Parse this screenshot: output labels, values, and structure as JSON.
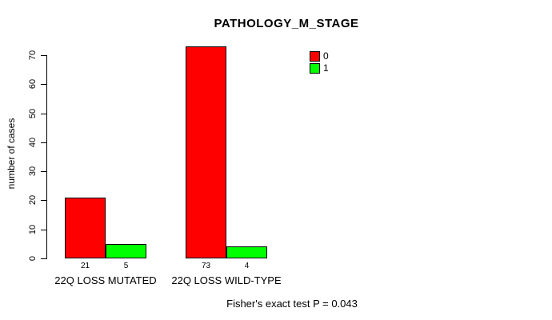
{
  "chart_data": {
    "type": "bar",
    "title": "PATHOLOGY_M_STAGE",
    "ylabel": "number of cases",
    "xlabel": "",
    "ylim": [
      0,
      70
    ],
    "yticks": [
      0,
      10,
      20,
      30,
      40,
      50,
      60,
      70
    ],
    "grid": false,
    "legend_position": "top-right",
    "categories": [
      "22Q LOSS MUTATED",
      "22Q LOSS WILD-TYPE"
    ],
    "series": [
      {
        "name": "0",
        "color": "#FF0000",
        "values": [
          21,
          73
        ]
      },
      {
        "name": "1",
        "color": "#00FF00",
        "values": [
          5,
          4
        ]
      }
    ],
    "bar_value_labels": [
      [
        "21",
        "5"
      ],
      [
        "73",
        "4"
      ]
    ],
    "annotation": "Fisher's exact test P = 0.043",
    "colors": {
      "background": "#FFFFFF",
      "axis": "#000000",
      "text": "#000000",
      "series_0": "#FF0000",
      "series_1": "#00FF00"
    }
  }
}
